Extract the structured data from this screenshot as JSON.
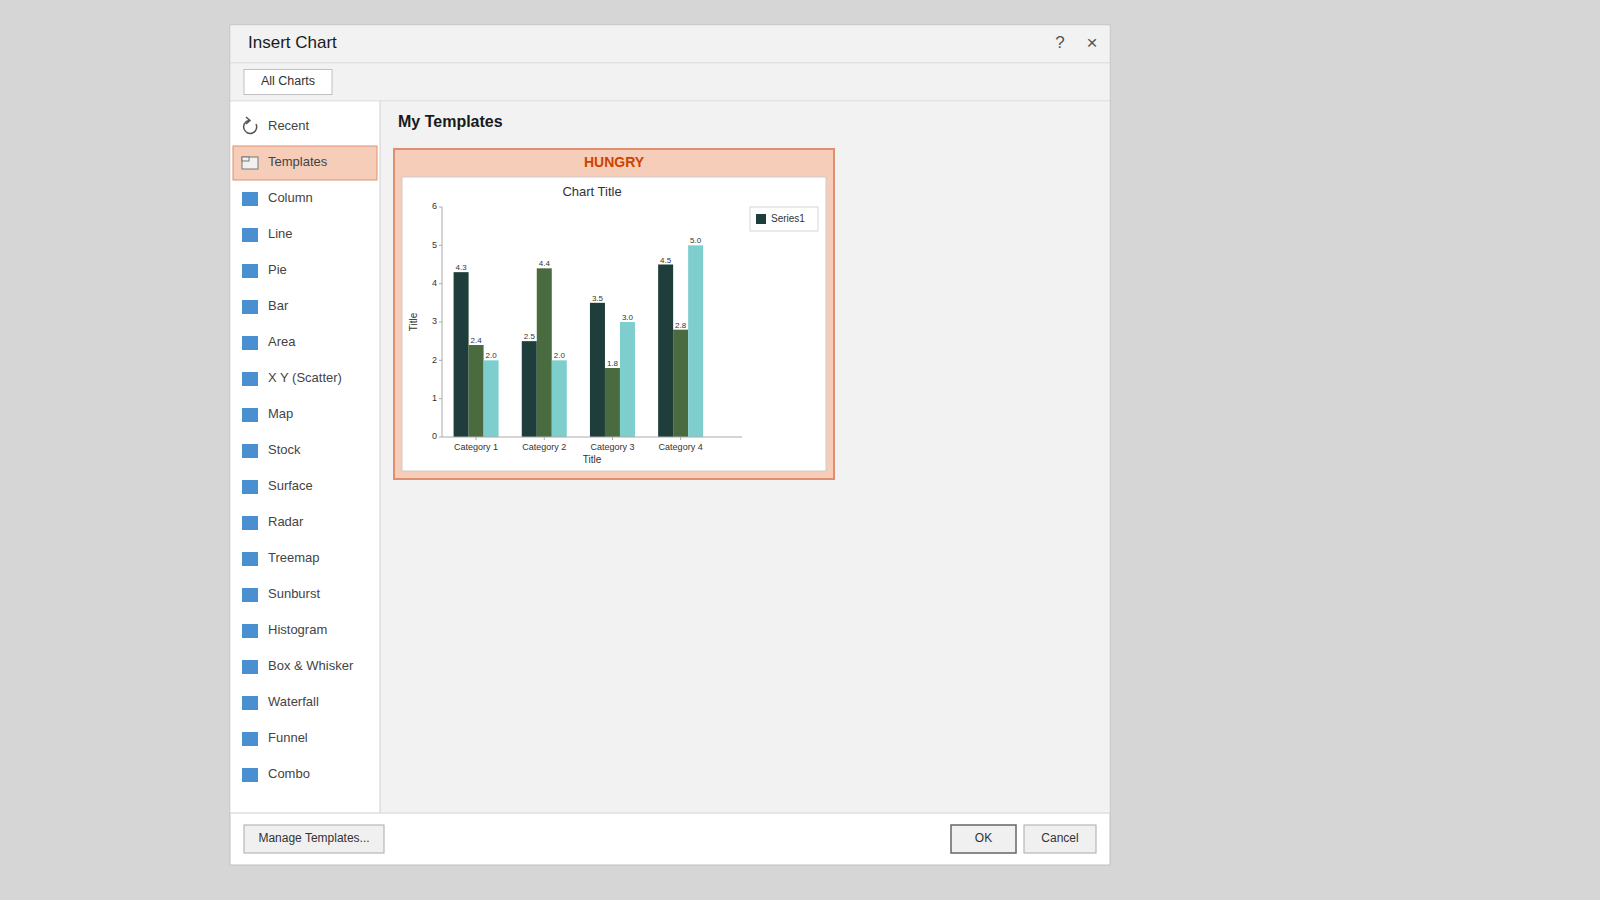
{
  "page": {
    "dialog_title": "Insert Chart",
    "help_label": "?",
    "close_label": "×",
    "tab_label": "All Charts",
    "menu_items": [
      "Recent",
      "Templates",
      "Column",
      "Line",
      "Pie",
      "Bar",
      "Area",
      "X Y (Scatter)",
      "Map",
      "Stock",
      "Surface",
      "Radar",
      "Treemap",
      "Sunburst",
      "Histogram",
      "Box & Whisker",
      "Waterfall",
      "Funnel",
      "Combo"
    ],
    "selected_item": "Templates",
    "section_title": "My Templates",
    "template_name": "HUNGRY",
    "buttons": {
      "manage": "Manage Templates...",
      "ok": "OK",
      "cancel": "Cancel"
    }
  },
  "chart_data": {
    "type": "bar",
    "title": "Chart Title",
    "x_label": "Title",
    "y_label": "Title",
    "categories": [
      "Category 1",
      "Category 2",
      "Category 3",
      "Category 4"
    ],
    "series": [
      {
        "name": "Series1",
        "color": "#1f3d3a",
        "values": [
          4.3,
          2.5,
          3.5,
          4.5
        ]
      },
      {
        "color": "#4a6b3f",
        "values": [
          2.4,
          4.4,
          1.8,
          2.8
        ]
      },
      {
        "color": "#7ecece",
        "values": [
          2.0,
          2.0,
          3.0,
          5.0
        ],
        "value_labels": [
          "2.0",
          "2.0",
          "3.0",
          "5.0"
        ]
      }
    ],
    "ylim": [
      0,
      6
    ],
    "yticks": [
      0,
      1,
      2,
      3,
      4,
      5,
      6
    ],
    "grid": false,
    "legend": "right",
    "data_labels": true
  }
}
